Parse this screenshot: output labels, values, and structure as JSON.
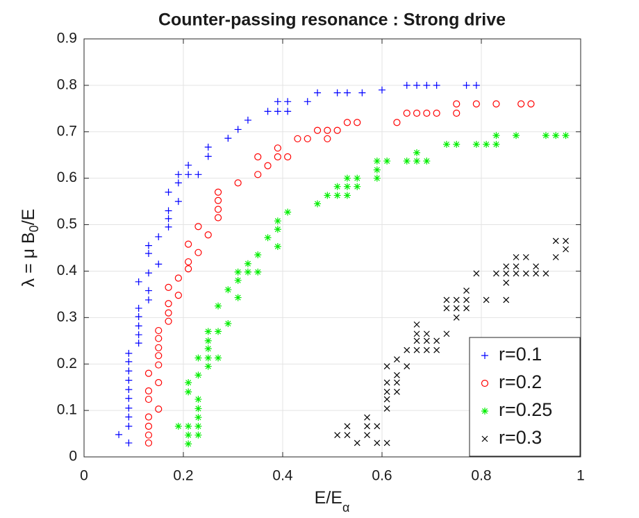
{
  "chart_data": {
    "type": "scatter",
    "title": "Counter-passing resonance : Strong drive",
    "xlabel": [
      "E/E",
      "α"
    ],
    "ylabel": [
      "λ = μ B",
      "0",
      "/E"
    ],
    "xlim": [
      0,
      1
    ],
    "ylim": [
      0,
      0.9
    ],
    "xticks": [
      0,
      0.2,
      0.4,
      0.6,
      0.8,
      1
    ],
    "yticks": [
      0,
      0.1,
      0.2,
      0.3,
      0.4,
      0.5,
      0.6,
      0.7,
      0.8,
      0.9
    ],
    "grid": true,
    "legend": "lower right",
    "series": [
      {
        "name": "r=0.1",
        "color": "#0000ff",
        "marker": "plus",
        "x": [
          0.07,
          0.09,
          0.09,
          0.09,
          0.09,
          0.09,
          0.09,
          0.09,
          0.09,
          0.09,
          0.09,
          0.11,
          0.11,
          0.11,
          0.11,
          0.11,
          0.11,
          0.13,
          0.13,
          0.13,
          0.13,
          0.13,
          0.15,
          0.15,
          0.17,
          0.17,
          0.17,
          0.17,
          0.19,
          0.19,
          0.19,
          0.21,
          0.21,
          0.23,
          0.25,
          0.25,
          0.29,
          0.31,
          0.33,
          0.37,
          0.39,
          0.41,
          0.39,
          0.41,
          0.45,
          0.47,
          0.51,
          0.53,
          0.56,
          0.6,
          0.65,
          0.67,
          0.69,
          0.71,
          0.77,
          0.79
        ],
        "values": [
          0.048,
          0.03,
          0.066,
          0.086,
          0.105,
          0.126,
          0.145,
          0.165,
          0.185,
          0.205,
          0.223,
          0.245,
          0.263,
          0.282,
          0.302,
          0.32,
          0.377,
          0.338,
          0.358,
          0.396,
          0.438,
          0.455,
          0.415,
          0.474,
          0.495,
          0.513,
          0.53,
          0.57,
          0.55,
          0.59,
          0.608,
          0.608,
          0.628,
          0.608,
          0.647,
          0.667,
          0.686,
          0.705,
          0.725,
          0.744,
          0.744,
          0.744,
          0.765,
          0.765,
          0.765,
          0.784,
          0.784,
          0.784,
          0.784,
          0.79,
          0.8,
          0.8,
          0.8,
          0.8,
          0.8,
          0.8
        ]
      },
      {
        "name": "r=0.2",
        "color": "#ff0000",
        "marker": "circle",
        "x": [
          0.13,
          0.13,
          0.13,
          0.13,
          0.13,
          0.13,
          0.13,
          0.15,
          0.15,
          0.15,
          0.15,
          0.15,
          0.15,
          0.15,
          0.17,
          0.17,
          0.17,
          0.17,
          0.19,
          0.19,
          0.21,
          0.21,
          0.21,
          0.23,
          0.23,
          0.25,
          0.27,
          0.27,
          0.27,
          0.27,
          0.31,
          0.35,
          0.35,
          0.37,
          0.39,
          0.39,
          0.41,
          0.43,
          0.45,
          0.47,
          0.49,
          0.49,
          0.51,
          0.53,
          0.55,
          0.63,
          0.65,
          0.67,
          0.69,
          0.71,
          0.75,
          0.75,
          0.79,
          0.83,
          0.88,
          0.9
        ],
        "values": [
          0.03,
          0.047,
          0.066,
          0.086,
          0.124,
          0.142,
          0.18,
          0.103,
          0.16,
          0.198,
          0.218,
          0.235,
          0.255,
          0.272,
          0.292,
          0.31,
          0.33,
          0.365,
          0.348,
          0.385,
          0.405,
          0.42,
          0.458,
          0.44,
          0.496,
          0.478,
          0.515,
          0.533,
          0.552,
          0.57,
          0.59,
          0.608,
          0.646,
          0.627,
          0.646,
          0.665,
          0.646,
          0.685,
          0.685,
          0.703,
          0.685,
          0.703,
          0.703,
          0.72,
          0.72,
          0.72,
          0.74,
          0.74,
          0.74,
          0.74,
          0.74,
          0.76,
          0.76,
          0.76,
          0.76,
          0.76
        ]
      },
      {
        "name": "r=0.25",
        "color": "#00ee00",
        "marker": "star",
        "x": [
          0.19,
          0.21,
          0.21,
          0.21,
          0.21,
          0.21,
          0.23,
          0.23,
          0.23,
          0.23,
          0.23,
          0.23,
          0.23,
          0.25,
          0.25,
          0.25,
          0.25,
          0.25,
          0.27,
          0.27,
          0.27,
          0.29,
          0.29,
          0.31,
          0.31,
          0.31,
          0.33,
          0.33,
          0.35,
          0.35,
          0.37,
          0.39,
          0.39,
          0.39,
          0.41,
          0.47,
          0.49,
          0.51,
          0.51,
          0.53,
          0.53,
          0.53,
          0.55,
          0.55,
          0.59,
          0.59,
          0.59,
          0.61,
          0.65,
          0.67,
          0.67,
          0.69,
          0.73,
          0.75,
          0.79,
          0.81,
          0.83,
          0.83,
          0.87,
          0.93,
          0.95,
          0.97
        ],
        "values": [
          0.066,
          0.028,
          0.047,
          0.066,
          0.14,
          0.16,
          0.047,
          0.066,
          0.085,
          0.104,
          0.124,
          0.176,
          0.213,
          0.195,
          0.213,
          0.233,
          0.25,
          0.27,
          0.213,
          0.325,
          0.27,
          0.287,
          0.36,
          0.343,
          0.38,
          0.398,
          0.398,
          0.416,
          0.398,
          0.435,
          0.472,
          0.453,
          0.49,
          0.508,
          0.527,
          0.545,
          0.563,
          0.563,
          0.582,
          0.563,
          0.582,
          0.6,
          0.582,
          0.6,
          0.6,
          0.618,
          0.637,
          0.637,
          0.637,
          0.637,
          0.655,
          0.637,
          0.673,
          0.673,
          0.673,
          0.673,
          0.673,
          0.692,
          0.692,
          0.692,
          0.692,
          0.692
        ]
      },
      {
        "name": "r=0.3",
        "color": "#000000",
        "marker": "cross",
        "x": [
          0.51,
          0.53,
          0.53,
          0.55,
          0.57,
          0.57,
          0.57,
          0.59,
          0.59,
          0.61,
          0.61,
          0.61,
          0.61,
          0.61,
          0.61,
          0.63,
          0.63,
          0.63,
          0.63,
          0.65,
          0.65,
          0.67,
          0.67,
          0.67,
          0.67,
          0.69,
          0.69,
          0.69,
          0.71,
          0.71,
          0.73,
          0.73,
          0.73,
          0.75,
          0.75,
          0.75,
          0.77,
          0.77,
          0.77,
          0.79,
          0.81,
          0.83,
          0.85,
          0.85,
          0.85,
          0.85,
          0.87,
          0.87,
          0.87,
          0.89,
          0.89,
          0.91,
          0.91,
          0.93,
          0.95,
          0.95,
          0.97,
          0.97
        ],
        "values": [
          0.047,
          0.047,
          0.066,
          0.03,
          0.047,
          0.066,
          0.085,
          0.03,
          0.066,
          0.03,
          0.104,
          0.124,
          0.14,
          0.16,
          0.195,
          0.14,
          0.16,
          0.176,
          0.21,
          0.195,
          0.23,
          0.23,
          0.25,
          0.265,
          0.285,
          0.23,
          0.25,
          0.265,
          0.23,
          0.25,
          0.265,
          0.32,
          0.338,
          0.3,
          0.32,
          0.338,
          0.32,
          0.338,
          0.358,
          0.395,
          0.338,
          0.395,
          0.338,
          0.375,
          0.395,
          0.41,
          0.395,
          0.41,
          0.43,
          0.395,
          0.43,
          0.395,
          0.41,
          0.395,
          0.43,
          0.465,
          0.447,
          0.465
        ]
      }
    ]
  }
}
